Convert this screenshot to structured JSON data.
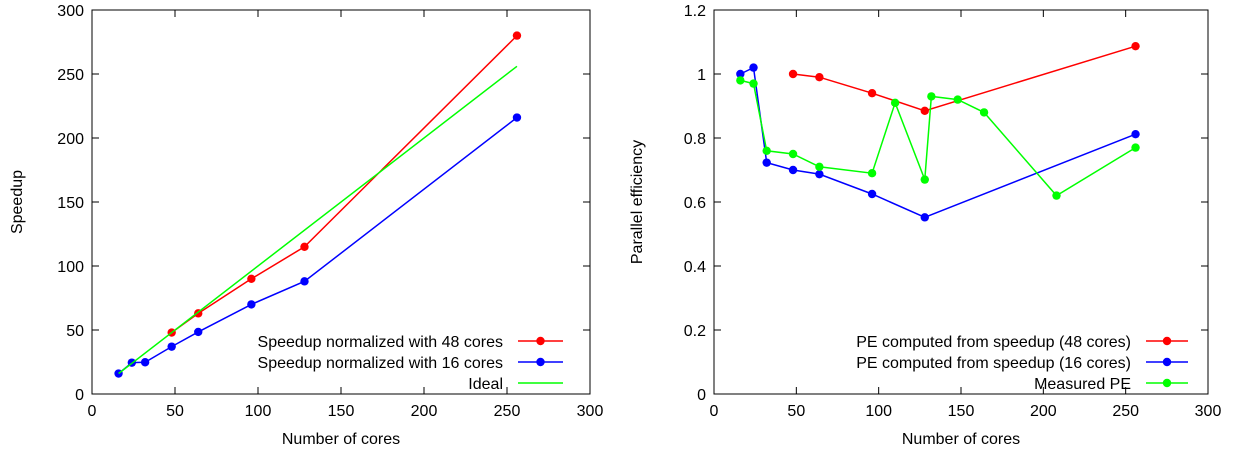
{
  "chart_data": [
    {
      "type": "line",
      "xlabel": "Number of cores",
      "ylabel": "Speedup",
      "xlim": [
        0,
        300
      ],
      "ylim": [
        0,
        300
      ],
      "xticks": [
        0,
        50,
        100,
        150,
        200,
        250,
        300
      ],
      "yticks": [
        0,
        50,
        100,
        150,
        200,
        250,
        300
      ],
      "grid": false,
      "legend_position": "bottom-right",
      "series": [
        {
          "name": "Speedup normalized with 48 cores",
          "color": "#ff0000",
          "markers": true,
          "x": [
            48,
            64,
            96,
            128,
            256
          ],
          "y": [
            48,
            63,
            90,
            115,
            280
          ]
        },
        {
          "name": "Speedup normalized with 16 cores",
          "color": "#0000ff",
          "markers": true,
          "x": [
            16,
            24,
            32,
            48,
            64,
            96,
            128,
            256
          ],
          "y": [
            16,
            24.5,
            24.8,
            37,
            48.5,
            70,
            88,
            216
          ]
        },
        {
          "name": "Ideal",
          "color": "#00ff00",
          "markers": false,
          "x": [
            16,
            256
          ],
          "y": [
            16,
            256
          ]
        }
      ]
    },
    {
      "type": "line",
      "xlabel": "Number of cores",
      "ylabel": "Parallel efficiency",
      "xlim": [
        0,
        300
      ],
      "ylim": [
        0,
        1.2
      ],
      "xticks": [
        0,
        50,
        100,
        150,
        200,
        250,
        300
      ],
      "yticks": [
        0,
        0.2,
        0.4,
        0.6,
        0.8,
        1,
        1.2
      ],
      "grid": false,
      "legend_position": "bottom-right",
      "series": [
        {
          "name": "PE computed from speedup (48 cores)",
          "color": "#ff0000",
          "markers": true,
          "x": [
            48,
            64,
            96,
            128,
            256
          ],
          "y": [
            1.0,
            0.99,
            0.94,
            0.885,
            1.087
          ]
        },
        {
          "name": "PE computed from speedup (16 cores)",
          "color": "#0000ff",
          "markers": true,
          "x": [
            16,
            24,
            32,
            48,
            64,
            96,
            128,
            256
          ],
          "y": [
            1.0,
            1.02,
            0.723,
            0.7,
            0.687,
            0.625,
            0.552,
            0.812
          ]
        },
        {
          "name": "Measured PE",
          "color": "#00ff00",
          "markers": true,
          "x": [
            16,
            24,
            32,
            48,
            64,
            96,
            110,
            128,
            132,
            148,
            164,
            208,
            256
          ],
          "y": [
            0.98,
            0.97,
            0.76,
            0.75,
            0.71,
            0.69,
            0.91,
            0.67,
            0.93,
            0.92,
            0.88,
            0.62,
            0.77
          ]
        }
      ]
    }
  ]
}
